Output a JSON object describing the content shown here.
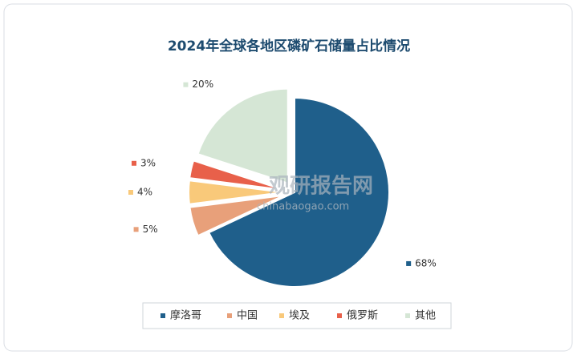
{
  "chart_data": {
    "type": "pie",
    "title": "2024年全球各地区磷矿石储量占比情况",
    "categories": [
      "摩洛哥",
      "中国",
      "埃及",
      "俄罗斯",
      "其他"
    ],
    "values": [
      68,
      5,
      4,
      3,
      20
    ],
    "value_labels": [
      "68%",
      "5%",
      "4%",
      "3%",
      "20%"
    ],
    "colors": [
      "#1f5f8b",
      "#e8a07a",
      "#f9c97a",
      "#e8604a",
      "#d5e6d5"
    ],
    "watermark": "观研报告网",
    "watermark_url": "chinabaogao.com"
  }
}
